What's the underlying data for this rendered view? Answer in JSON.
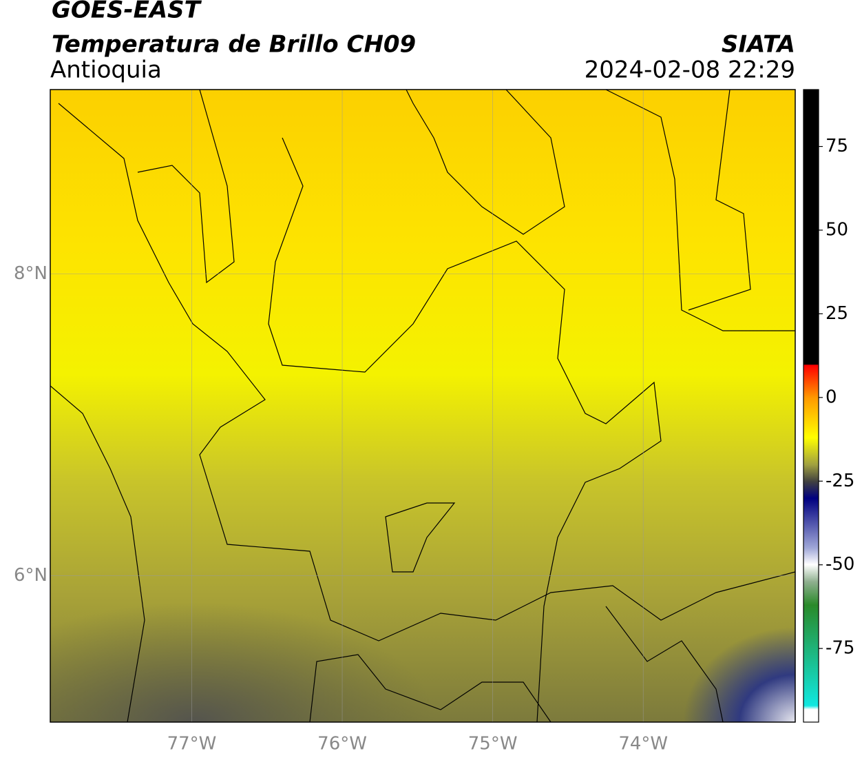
{
  "header": {
    "title": "GOES-EAST",
    "subtitle": "Temperatura de Brillo CH09",
    "region": "Antioquia",
    "source": "SIATA",
    "datetime": "2024-02-08 22:29"
  },
  "map": {
    "xlim": [
      -77.94,
      -72.99
    ],
    "ylim": [
      5.03,
      9.22
    ],
    "xticks": [
      {
        "value": -77,
        "label": "77°W"
      },
      {
        "value": -76,
        "label": "76°W"
      },
      {
        "value": -75,
        "label": "75°W"
      },
      {
        "value": -74,
        "label": "74°W"
      }
    ],
    "yticks": [
      {
        "value": 6,
        "label": "6°N"
      },
      {
        "value": 8,
        "label": "8°N"
      }
    ],
    "grid": true
  },
  "colorbar": {
    "lim": [
      -97,
      92
    ],
    "ticks": [
      75,
      50,
      25,
      0,
      -25,
      -50,
      -75
    ]
  }
}
